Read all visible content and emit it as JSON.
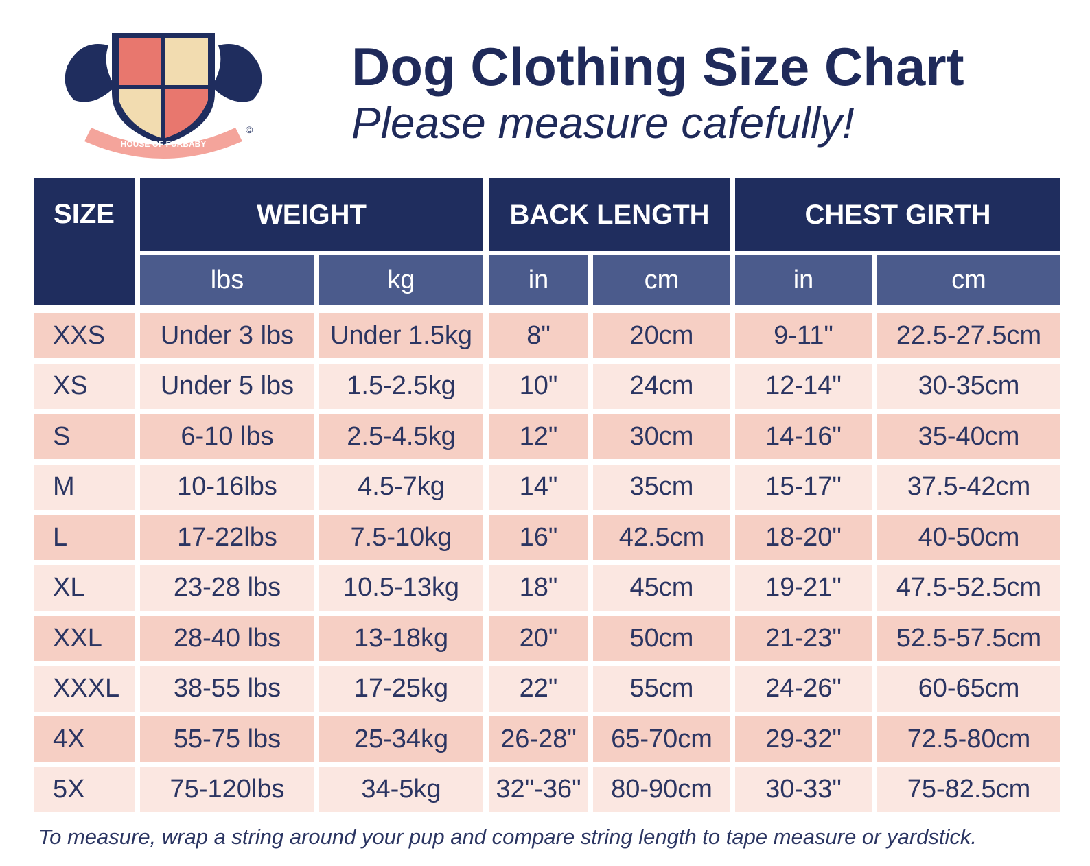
{
  "header": {
    "title": "Dog Clothing Size Chart",
    "subtitle": "Please measure cafefully!"
  },
  "logo": {
    "text": "HOUSE OF FURBABY",
    "mark": "©"
  },
  "table": {
    "groups": [
      "SIZE",
      "WEIGHT",
      "BACK LENGTH",
      "CHEST GIRTH"
    ],
    "units": [
      "lbs",
      "kg",
      "in",
      "cm",
      "in",
      "cm"
    ],
    "rows": [
      [
        "XXS",
        "Under 3 lbs",
        "Under 1.5kg",
        "8\"",
        "20cm",
        "9-11\"",
        "22.5-27.5cm"
      ],
      [
        "XS",
        "Under 5 lbs",
        "1.5-2.5kg",
        "10\"",
        "24cm",
        "12-14\"",
        "30-35cm"
      ],
      [
        "S",
        "6-10 lbs",
        "2.5-4.5kg",
        "12\"",
        "30cm",
        "14-16\"",
        "35-40cm"
      ],
      [
        "M",
        "10-16lbs",
        "4.5-7kg",
        "14\"",
        "35cm",
        "15-17\"",
        "37.5-42cm"
      ],
      [
        "L",
        "17-22lbs",
        "7.5-10kg",
        "16\"",
        "42.5cm",
        "18-20\"",
        "40-50cm"
      ],
      [
        "XL",
        "23-28 lbs",
        "10.5-13kg",
        "18\"",
        "45cm",
        "19-21\"",
        "47.5-52.5cm"
      ],
      [
        "XXL",
        "28-40 lbs",
        "13-18kg",
        "20\"",
        "50cm",
        "21-23\"",
        "52.5-57.5cm"
      ],
      [
        "XXXL",
        "38-55 lbs",
        "17-25kg",
        "22\"",
        "55cm",
        "24-26\"",
        "60-65cm"
      ],
      [
        "4X",
        "55-75 lbs",
        "25-34kg",
        "26-28\"",
        "65-70cm",
        "29-32\"",
        "72.5-80cm"
      ],
      [
        "5X",
        "75-120lbs",
        "34-5kg",
        "32\"-36\"",
        "80-90cm",
        "30-33\"",
        "75-82.5cm"
      ]
    ]
  },
  "footer": "To measure, wrap a string around your pup and  compare string length to tape measure or yardstick."
}
